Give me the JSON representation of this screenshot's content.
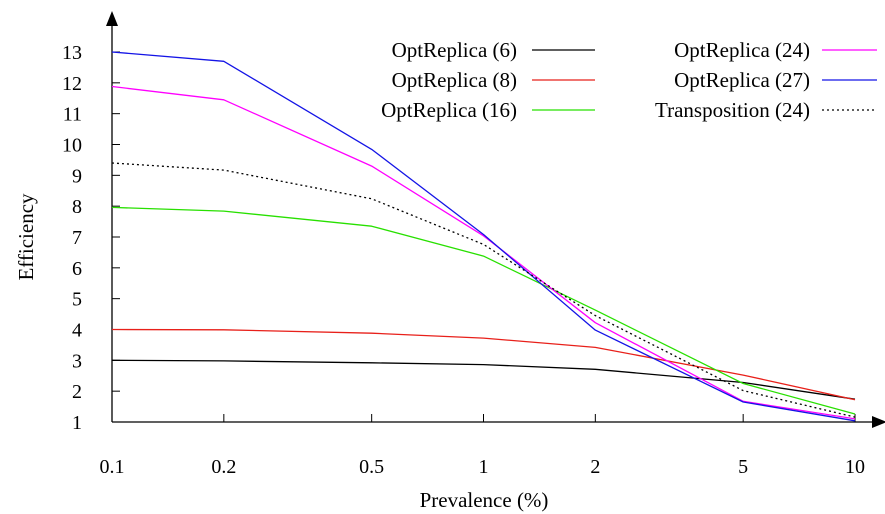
{
  "chart_data": {
    "type": "line",
    "title": "",
    "xlabel": "Prevalence (%)",
    "ylabel": "Efficiency",
    "x": [
      "0.1",
      "0.2",
      "0.5",
      "1",
      "2",
      "5",
      "10"
    ],
    "x_scale": "log",
    "ylim": [
      1,
      13
    ],
    "y_ticks": [
      "1",
      "2",
      "3",
      "4",
      "5",
      "6",
      "7",
      "8",
      "9",
      "10",
      "11",
      "12",
      "13"
    ],
    "grid": false,
    "legend_position": "top-right",
    "series": [
      {
        "name": "OptReplica (6)",
        "color": "#000000",
        "dash": "solid",
        "values": [
          3.0,
          2.98,
          2.92,
          2.86,
          2.71,
          2.28,
          1.74
        ]
      },
      {
        "name": "OptReplica (8)",
        "color": "#e8201a",
        "dash": "solid",
        "values": [
          4.0,
          3.99,
          3.88,
          3.72,
          3.42,
          2.52,
          1.72
        ]
      },
      {
        "name": "OptReplica (16)",
        "color": "#28e000",
        "dash": "solid",
        "values": [
          7.96,
          7.84,
          7.35,
          6.38,
          4.63,
          2.25,
          1.26
        ]
      },
      {
        "name": "OptReplica (24)",
        "color": "#ff00ff",
        "dash": "solid",
        "values": [
          11.88,
          11.45,
          9.3,
          7.04,
          4.22,
          1.67,
          1.1
        ]
      },
      {
        "name": "OptReplica (27)",
        "color": "#1414e6",
        "dash": "solid",
        "values": [
          13.0,
          12.7,
          9.84,
          7.08,
          3.98,
          1.65,
          1.04
        ]
      },
      {
        "name": "Transposition (24)",
        "color": "#000000",
        "dash": "dotted",
        "values": [
          9.4,
          9.17,
          8.24,
          6.76,
          4.45,
          2.02,
          1.16
        ]
      }
    ]
  }
}
